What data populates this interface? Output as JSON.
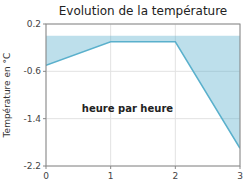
{
  "chart_data": {
    "type": "area",
    "title": "Evolution de la température",
    "xlabel": "heure par heure",
    "ylabel": "Température en °C",
    "x": [
      0,
      1,
      2,
      3
    ],
    "values": [
      -0.5,
      -0.1,
      -0.1,
      -1.9
    ],
    "xlim": [
      0,
      3
    ],
    "ylim": [
      -2.2,
      0.2
    ],
    "xticks": [
      0,
      1,
      2,
      3
    ],
    "yticks": [
      -2.2,
      -1.4,
      -0.6,
      0.2
    ],
    "grid": true,
    "color": "#5ab0cc"
  }
}
